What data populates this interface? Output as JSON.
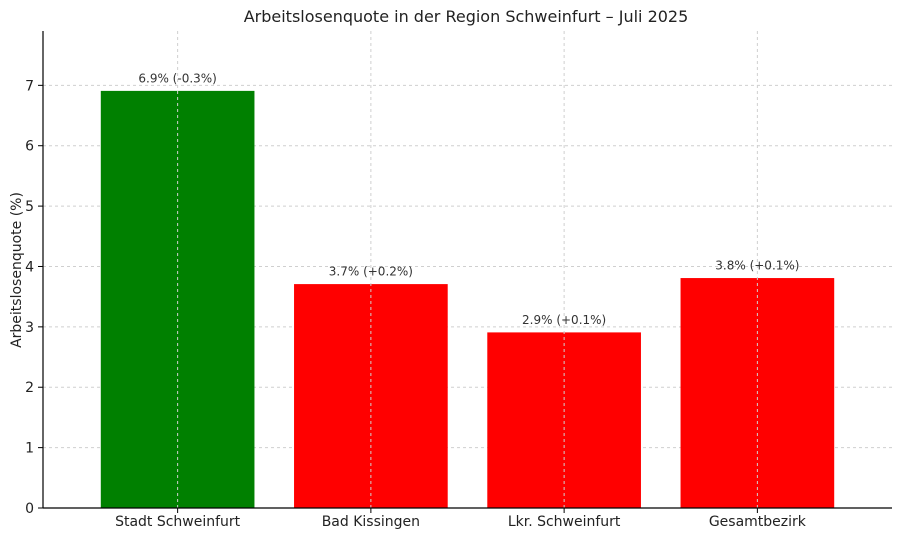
{
  "chart_data": {
    "type": "bar",
    "title": "Arbeitslosenquote in der Region Schweinfurt – Juli 2025",
    "xlabel": "",
    "ylabel": "Arbeitslosenquote (%)",
    "categories": [
      "Stadt Schweinfurt",
      "Bad Kissingen",
      "Lkr. Schweinfurt",
      "Gesamtbezirk"
    ],
    "values": [
      6.9,
      3.7,
      2.9,
      3.8
    ],
    "data_labels": [
      "6.9% (-0.3%)",
      "3.7% (+0.2%)",
      "2.9% (+0.1%)",
      "3.8% (+0.1%)"
    ],
    "bar_colors": [
      "#008000",
      "#ff0000",
      "#ff0000",
      "#ff0000"
    ],
    "ylim": [
      0,
      7.9
    ],
    "yticks": [
      0,
      1,
      2,
      3,
      4,
      5,
      6,
      7
    ],
    "grid": true,
    "legend": "none"
  }
}
